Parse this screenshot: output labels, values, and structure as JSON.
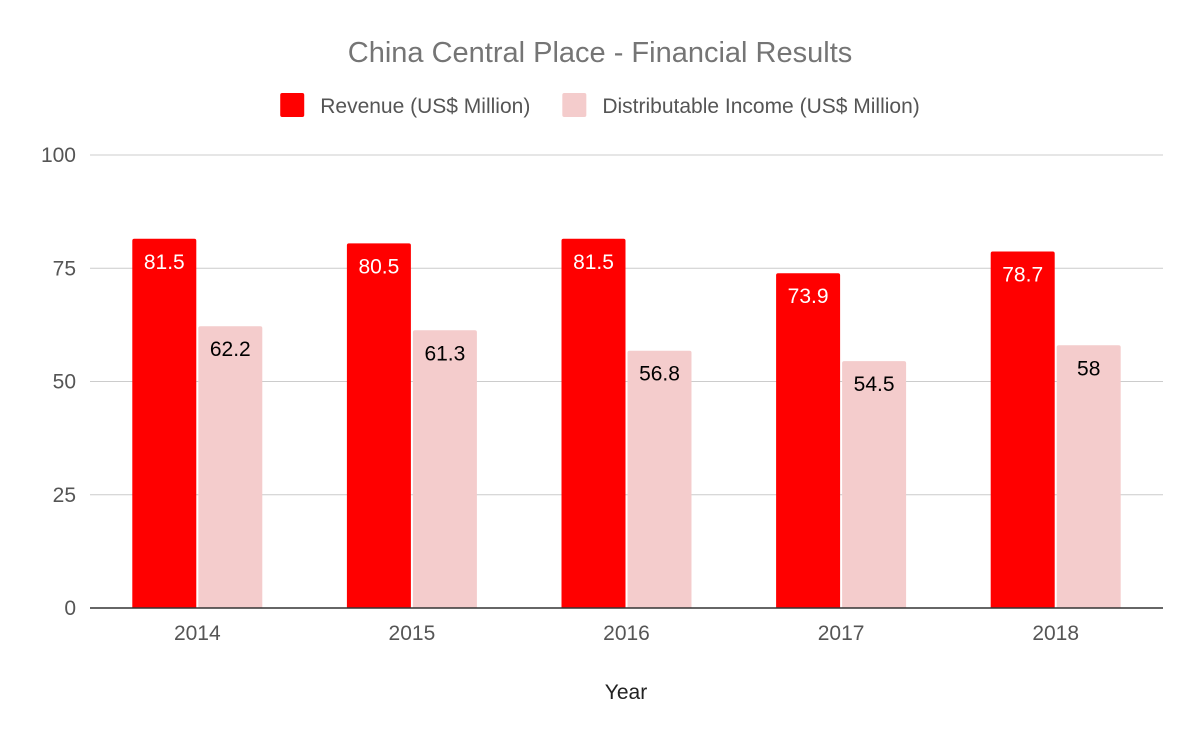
{
  "chart_data": {
    "type": "bar",
    "title": "China Central Place - Financial Results",
    "xlabel": "Year",
    "ylabel": "",
    "categories": [
      "2014",
      "2015",
      "2016",
      "2017",
      "2018"
    ],
    "series": [
      {
        "name": "Revenue (US$ Million)",
        "values": [
          81.5,
          80.5,
          81.5,
          73.9,
          78.7
        ],
        "color": "#ff0000",
        "label_color": "#ffffff"
      },
      {
        "name": "Distributable Income (US$ Million)",
        "values": [
          62.2,
          61.3,
          56.8,
          54.5,
          58
        ],
        "color": "#f4cccc",
        "label_color": "#000000"
      }
    ],
    "ylim": [
      0,
      100
    ],
    "yticks": [
      0,
      25,
      50,
      75,
      100
    ],
    "grid": true,
    "legend_position": "top-center",
    "data_labels": "inside-top"
  }
}
